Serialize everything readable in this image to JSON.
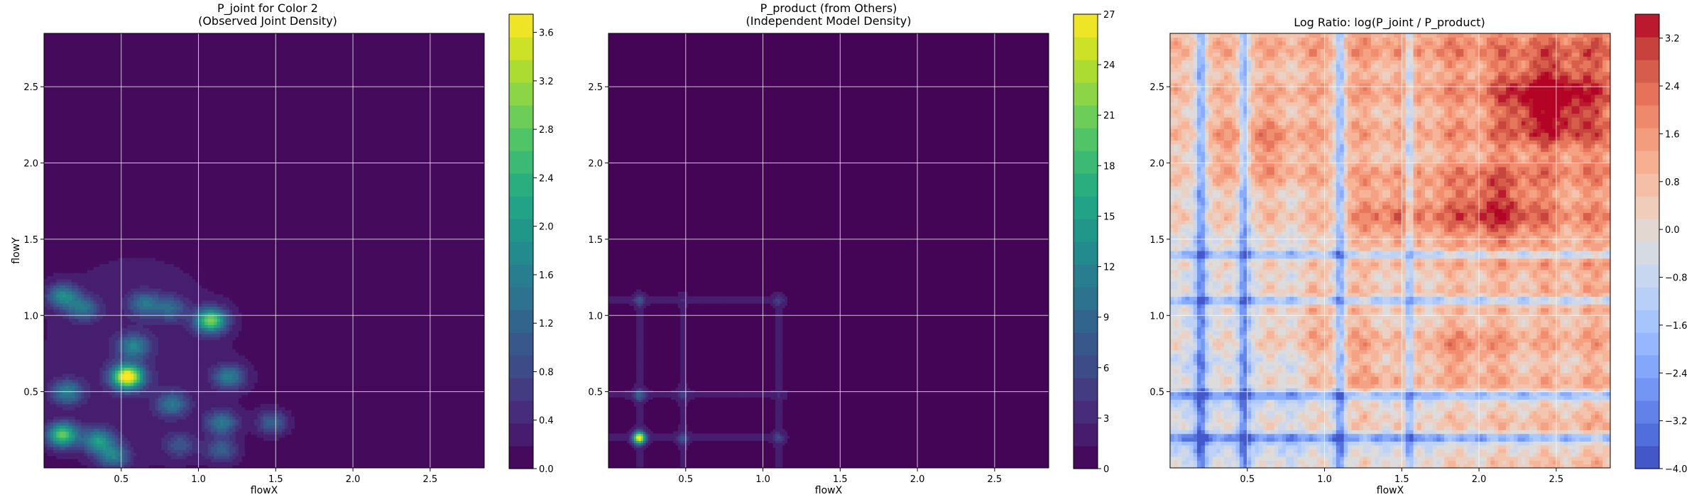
{
  "chart_data": [
    {
      "type": "heatmap",
      "title": "P_joint for Color 2",
      "subtitle": "(Observed Joint Density)",
      "xlabel": "flowX",
      "ylabel": "flowY",
      "xlim": [
        0.0,
        2.85
      ],
      "ylim": [
        0.0,
        2.85
      ],
      "x_ticks": [
        "0.5",
        "1.0",
        "1.5",
        "2.0",
        "2.5"
      ],
      "y_ticks": [
        "0.5",
        "1.0",
        "1.5",
        "2.0",
        "2.5"
      ],
      "grid": true,
      "colormap": "viridis",
      "colorbar": {
        "range": [
          0.0,
          3.75
        ],
        "ticks": [
          "0.0",
          "0.4",
          "0.8",
          "1.2",
          "1.6",
          "2.0",
          "2.4",
          "2.8",
          "3.2",
          "3.6"
        ]
      },
      "peaks": [
        {
          "x": 0.12,
          "y": 0.22,
          "value": 2.6
        },
        {
          "x": 0.54,
          "y": 0.6,
          "value": 3.75
        },
        {
          "x": 1.08,
          "y": 0.97,
          "value": 2.8
        },
        {
          "x": 0.12,
          "y": 1.13,
          "value": 1.6
        },
        {
          "x": 0.25,
          "y": 1.05,
          "value": 1.2
        },
        {
          "x": 0.65,
          "y": 1.08,
          "value": 1.2
        },
        {
          "x": 0.82,
          "y": 1.05,
          "value": 1.0
        },
        {
          "x": 0.58,
          "y": 0.8,
          "value": 1.4
        },
        {
          "x": 0.15,
          "y": 0.5,
          "value": 1.4
        },
        {
          "x": 0.35,
          "y": 0.18,
          "value": 1.8
        },
        {
          "x": 0.45,
          "y": 0.08,
          "value": 1.4
        },
        {
          "x": 1.2,
          "y": 0.6,
          "value": 1.4
        },
        {
          "x": 0.83,
          "y": 0.42,
          "value": 1.2
        },
        {
          "x": 1.15,
          "y": 0.3,
          "value": 1.3
        },
        {
          "x": 1.48,
          "y": 0.3,
          "value": 1.1
        },
        {
          "x": 1.15,
          "y": 0.12,
          "value": 1.0
        },
        {
          "x": 0.88,
          "y": 0.15,
          "value": 0.8
        }
      ]
    },
    {
      "type": "heatmap",
      "title": "P_product (from Others)",
      "subtitle": "(Independent Model Density)",
      "xlabel": "flowX",
      "ylabel": "",
      "xlim": [
        0.0,
        2.85
      ],
      "ylim": [
        0.0,
        2.85
      ],
      "x_ticks": [
        "0.5",
        "1.0",
        "1.5",
        "2.0",
        "2.5"
      ],
      "y_ticks": [
        "0.5",
        "1.0",
        "1.5",
        "2.0",
        "2.5"
      ],
      "grid": true,
      "colormap": "viridis",
      "colorbar": {
        "range": [
          0,
          27
        ],
        "ticks": [
          "0",
          "3",
          "6",
          "9",
          "12",
          "15",
          "18",
          "21",
          "24",
          "27"
        ]
      },
      "peaks": [
        {
          "x": 0.2,
          "y": 0.2,
          "value": 25
        },
        {
          "x": 0.2,
          "y": 0.48,
          "value": 6
        },
        {
          "x": 0.2,
          "y": 1.1,
          "value": 4
        },
        {
          "x": 0.48,
          "y": 0.2,
          "value": 4
        },
        {
          "x": 1.1,
          "y": 0.2,
          "value": 3
        },
        {
          "x": 1.1,
          "y": 1.1,
          "value": 2
        },
        {
          "x": 0.48,
          "y": 0.48,
          "value": 2
        }
      ]
    },
    {
      "type": "heatmap",
      "title": "Log Ratio: log(P_joint / P_product)",
      "subtitle": "",
      "xlabel": "flowX",
      "ylabel": "",
      "xlim": [
        0.0,
        2.85
      ],
      "ylim": [
        0.0,
        2.85
      ],
      "x_ticks": [
        "0.5",
        "1.0",
        "1.5",
        "2.0",
        "2.5"
      ],
      "y_ticks": [
        "0.5",
        "1.0",
        "1.5",
        "2.0",
        "2.5"
      ],
      "grid": true,
      "colormap": "coolwarm",
      "colorbar": {
        "range": [
          -4.0,
          3.6
        ],
        "ticks": [
          "3.2",
          "2.4",
          "1.6",
          "0.8",
          "0.0",
          "−0.8",
          "−1.6",
          "−2.4",
          "−3.2",
          "−4.0"
        ]
      },
      "low_bands_x": [
        0.2,
        0.48,
        1.1,
        1.55
      ],
      "low_bands_y": [
        0.2,
        0.48,
        1.1,
        1.4
      ],
      "high_regions": [
        {
          "x": 2.45,
          "y": 2.4,
          "value": 2.6
        },
        {
          "x": 2.1,
          "y": 1.7,
          "value": 2.0
        },
        {
          "x": 0.55,
          "y": 2.1,
          "value": 1.2
        },
        {
          "x": 1.45,
          "y": 1.65,
          "value": 1.3
        },
        {
          "x": 1.9,
          "y": 0.75,
          "value": 1.0
        },
        {
          "x": 1.25,
          "y": 0.6,
          "value": 1.0
        },
        {
          "x": 1.02,
          "y": 1.0,
          "value": 0.9
        }
      ]
    }
  ]
}
